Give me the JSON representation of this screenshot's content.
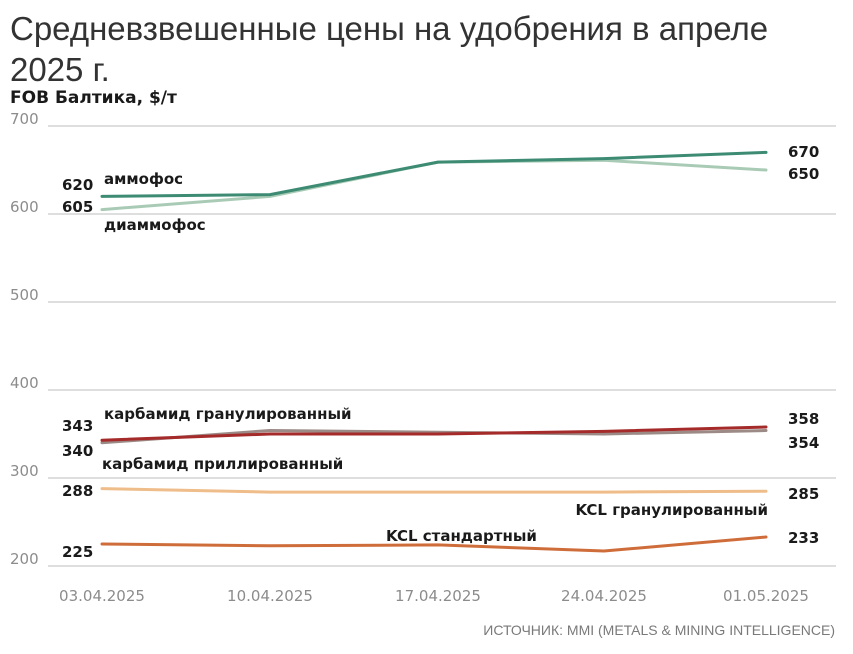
{
  "header": {
    "title": "Средневзвешенные цены на удобрения в апреле 2025 г.",
    "subtitle": "FOB Балтика, $/т"
  },
  "footer": {
    "source": "ИСТОЧНИК: MMI (METALS & MINING INTELLIGENCE)"
  },
  "chart_data": {
    "type": "line",
    "title": "Средневзвешенные цены на удобрения в апреле 2025 г.",
    "ylabel": "FOB Балтика, $/т",
    "xlabel": "",
    "ylim": [
      200,
      700
    ],
    "yticks": [
      700,
      600,
      500,
      400,
      300,
      200
    ],
    "x": [
      "03.04.2025",
      "10.04.2025",
      "17.04.2025",
      "24.04.2025",
      "01.05.2025"
    ],
    "grid": true,
    "legend": "inline labels",
    "series": [
      {
        "name": "аммофос",
        "color": "#3d8b73",
        "values": [
          620,
          622,
          659,
          663,
          670
        ]
      },
      {
        "name": "диаммофос",
        "color": "#a9cbb6",
        "values": [
          605,
          620,
          659,
          661,
          650
        ]
      },
      {
        "name": "карбамид гранулированный",
        "color": "#a52a2a",
        "values": [
          343,
          350,
          350,
          353,
          358
        ]
      },
      {
        "name": "карбамид приллированный",
        "color": "#9c8a86",
        "values": [
          340,
          354,
          352,
          350,
          354
        ]
      },
      {
        "name": "KCL гранулированный",
        "color": "#efbd8a",
        "values": [
          288,
          284,
          284,
          284,
          285
        ]
      },
      {
        "name": "KCL стандартный",
        "color": "#cf6d3a",
        "values": [
          225,
          223,
          224,
          217,
          233
        ]
      }
    ],
    "data_labels": {
      "start": [
        "620",
        "605",
        "343",
        "340",
        "288",
        "225"
      ],
      "end": [
        "670",
        "650",
        "358",
        "354",
        "285",
        "233"
      ]
    }
  }
}
